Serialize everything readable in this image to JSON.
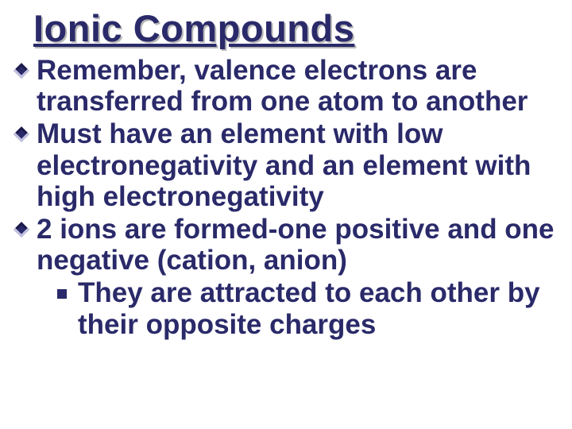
{
  "slide": {
    "title": "Ionic Compounds",
    "title_color": "#2a2a6a",
    "title_fontsize": 47,
    "title_underline": true,
    "body_color": "#2a2a6a",
    "body_fontsize": 35,
    "background_color": "#ffffff",
    "bullets": [
      {
        "text": "Remember, valence electrons are transferred from one atom to another",
        "level": 1
      },
      {
        "text": "Must have an element with low electronegativity and an element with high electronegativity",
        "level": 1
      },
      {
        "text": "2 ions are formed-one positive and one negative (cation, anion)",
        "level": 1,
        "sub": [
          {
            "text": "They are attracted to each other by their opposite charges",
            "level": 2
          }
        ]
      }
    ],
    "bullet_marker_level1": "diamond",
    "bullet_marker_level2": "square"
  }
}
